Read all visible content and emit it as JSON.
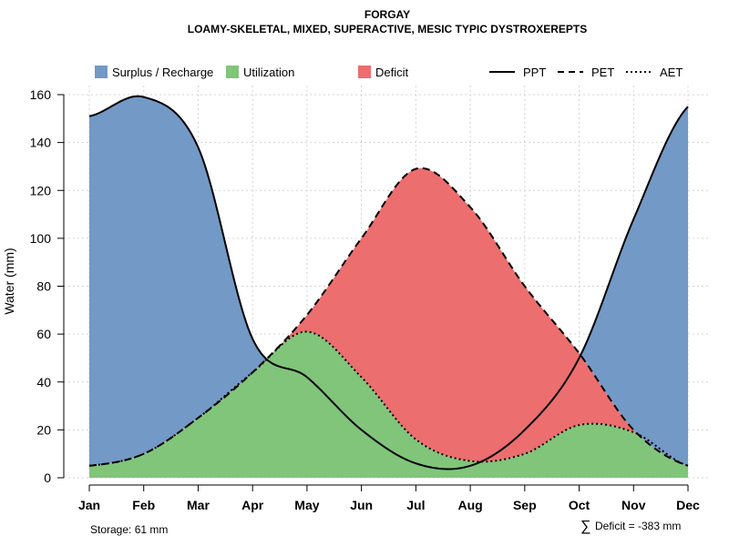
{
  "chart_data": {
    "type": "area",
    "title": "FORGAY",
    "subtitle": "LOAMY-SKELETAL, MIXED, SUPERACTIVE, MESIC TYPIC DYSTROXEREPTS",
    "xlabel": "",
    "ylabel": "Water (mm)",
    "ylim": [
      0,
      160
    ],
    "yticks": [
      0,
      20,
      40,
      60,
      80,
      100,
      120,
      140,
      160
    ],
    "categories": [
      "Jan",
      "Feb",
      "Mar",
      "Apr",
      "May",
      "Jun",
      "Jul",
      "Aug",
      "Sep",
      "Oct",
      "Nov",
      "Dec"
    ],
    "grid": true,
    "legend_position": "top",
    "series": [
      {
        "name": "PPT",
        "style": "solid",
        "values": [
          151,
          159,
          138,
          58,
          42,
          20,
          6,
          5,
          20,
          50,
          108,
          155
        ]
      },
      {
        "name": "PET",
        "style": "dashed",
        "values": [
          5,
          10,
          25,
          44,
          68,
          100,
          129,
          113,
          80,
          52,
          20,
          5
        ]
      },
      {
        "name": "AET",
        "style": "dotted",
        "values": [
          5,
          10,
          25,
          44,
          61,
          42,
          16,
          7,
          10,
          22,
          19,
          5
        ]
      }
    ],
    "fills": [
      {
        "name": "Surplus / Recharge",
        "color": "#7399c6"
      },
      {
        "name": "Utilization",
        "color": "#80c57a"
      },
      {
        "name": "Deficit",
        "color": "#ec6e6e"
      }
    ],
    "annotations": {
      "storage": "Storage: 61 mm",
      "deficit": "Deficit = -383 mm",
      "sum_symbol": "∑"
    }
  }
}
